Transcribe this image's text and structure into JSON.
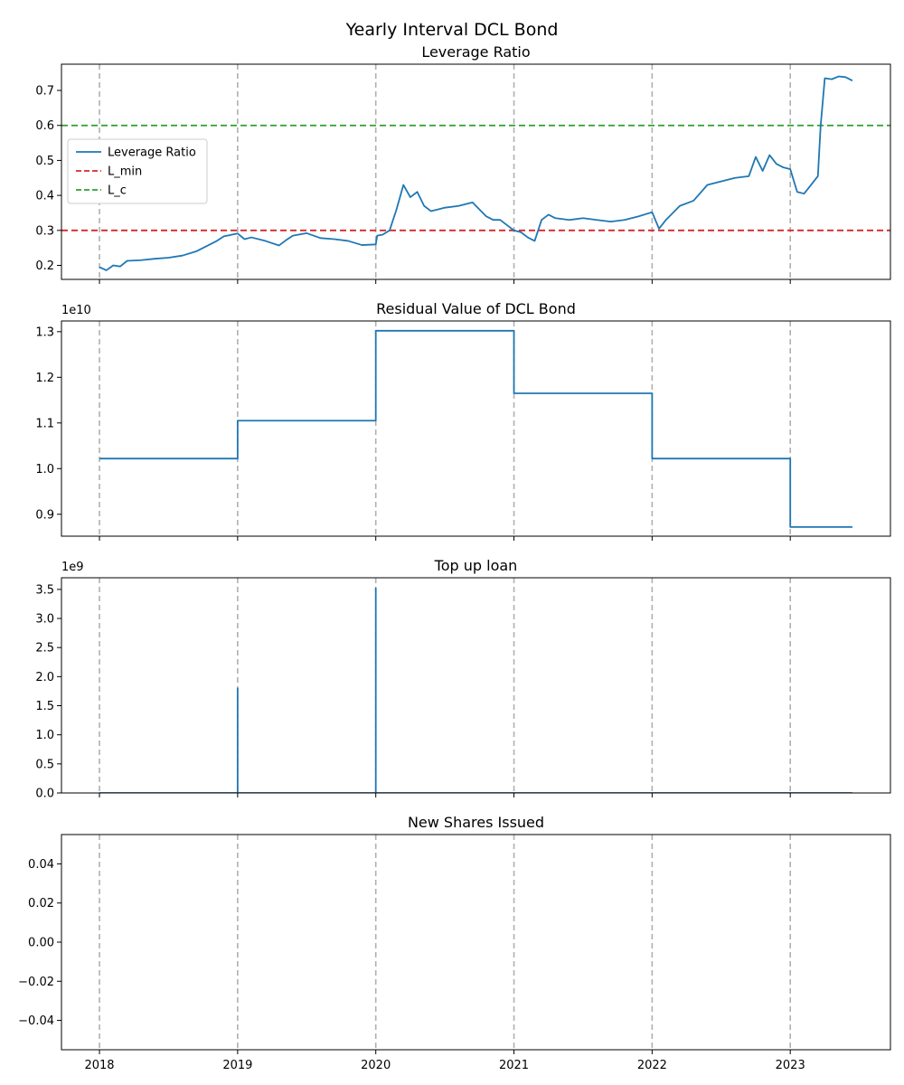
{
  "suptitle": "Yearly Interval DCL Bond",
  "x_tick_labels": [
    "2018",
    "2019",
    "2020",
    "2021",
    "2022",
    "2023"
  ],
  "chart_data": [
    {
      "type": "line",
      "title": "Leverage Ratio",
      "xlabel": "",
      "ylabel": "",
      "ylim": [
        0.16,
        0.775
      ],
      "y_ticks": [
        0.2,
        0.3,
        0.4,
        0.5,
        0.6,
        0.7
      ],
      "y_tick_labels": [
        "0.2",
        "0.3",
        "0.4",
        "0.5",
        "0.6",
        "0.7"
      ],
      "vertical_lines": [
        2018,
        2019,
        2020,
        2021,
        2022,
        2023
      ],
      "hlines": [
        {
          "name": "L_min",
          "y": 0.3,
          "color": "#d62728"
        },
        {
          "name": "L_c",
          "y": 0.6,
          "color": "#2ca02c"
        }
      ],
      "legend": {
        "position": "center-left",
        "entries": [
          {
            "label": "Leverage Ratio",
            "color": "#1f77b4",
            "style": "solid"
          },
          {
            "label": "L_min",
            "color": "#d62728",
            "style": "dashed"
          },
          {
            "label": "L_c",
            "color": "#2ca02c",
            "style": "dashed"
          }
        ]
      },
      "series": [
        {
          "name": "Leverage Ratio",
          "color": "#1f77b4",
          "x": [
            2018.0,
            2018.05,
            2018.1,
            2018.15,
            2018.2,
            2018.3,
            2018.4,
            2018.5,
            2018.6,
            2018.7,
            2018.8,
            2018.85,
            2018.9,
            2019.0,
            2019.05,
            2019.1,
            2019.2,
            2019.3,
            2019.35,
            2019.4,
            2019.5,
            2019.6,
            2019.7,
            2019.8,
            2019.9,
            2020.0,
            2020.01,
            2020.05,
            2020.1,
            2020.15,
            2020.2,
            2020.25,
            2020.3,
            2020.35,
            2020.4,
            2020.45,
            2020.5,
            2020.6,
            2020.7,
            2020.8,
            2020.85,
            2020.9,
            2021.0,
            2021.05,
            2021.1,
            2021.15,
            2021.2,
            2021.25,
            2021.3,
            2021.4,
            2021.5,
            2021.6,
            2021.7,
            2021.8,
            2021.9,
            2022.0,
            2022.05,
            2022.1,
            2022.15,
            2022.2,
            2022.3,
            2022.4,
            2022.5,
            2022.6,
            2022.7,
            2022.75,
            2022.8,
            2022.85,
            2022.9,
            2022.95,
            2023.0,
            2023.05,
            2023.1,
            2023.15,
            2023.2,
            2023.22,
            2023.25,
            2023.3,
            2023.35,
            2023.4,
            2023.45
          ],
          "y": [
            0.195,
            0.186,
            0.2,
            0.197,
            0.213,
            0.215,
            0.219,
            0.222,
            0.228,
            0.24,
            0.26,
            0.27,
            0.283,
            0.291,
            0.275,
            0.28,
            0.27,
            0.257,
            0.272,
            0.285,
            0.292,
            0.278,
            0.275,
            0.27,
            0.258,
            0.26,
            0.285,
            0.288,
            0.3,
            0.36,
            0.43,
            0.395,
            0.41,
            0.37,
            0.355,
            0.36,
            0.365,
            0.37,
            0.38,
            0.34,
            0.33,
            0.33,
            0.3,
            0.295,
            0.28,
            0.27,
            0.33,
            0.345,
            0.335,
            0.33,
            0.335,
            0.33,
            0.325,
            0.33,
            0.34,
            0.352,
            0.305,
            0.33,
            0.35,
            0.37,
            0.385,
            0.43,
            0.44,
            0.45,
            0.455,
            0.51,
            0.47,
            0.515,
            0.49,
            0.48,
            0.475,
            0.41,
            0.405,
            0.43,
            0.455,
            0.6,
            0.735,
            0.732,
            0.74,
            0.738,
            0.728
          ]
        }
      ]
    },
    {
      "type": "line",
      "title": "Residual Value of DCL Bond",
      "xlabel": "",
      "ylabel": "",
      "y_offset_label": "1e10",
      "ylim": [
        0.852,
        1.3234
      ],
      "y_ticks": [
        0.9,
        1.0,
        1.1,
        1.2,
        1.3
      ],
      "y_tick_labels": [
        "0.9",
        "1.0",
        "1.1",
        "1.2",
        "1.3"
      ],
      "vertical_lines": [
        2018,
        2019,
        2020,
        2021,
        2022,
        2023
      ],
      "series": [
        {
          "name": "Residual Value of DCL Bond",
          "color": "#1f77b4",
          "x": [
            2018.0,
            2019.0,
            2019.0,
            2020.0,
            2020.0,
            2021.0,
            2021.0,
            2022.0,
            2022.0,
            2023.0,
            2023.0,
            2023.45
          ],
          "y": [
            1.022,
            1.022,
            1.105,
            1.105,
            1.302,
            1.302,
            1.165,
            1.165,
            1.022,
            1.022,
            0.872,
            0.872
          ]
        }
      ]
    },
    {
      "type": "line",
      "title": "Top up loan",
      "xlabel": "",
      "ylabel": "",
      "y_offset_label": "1e9",
      "ylim": [
        0,
        3.7
      ],
      "y_ticks": [
        0.0,
        0.5,
        1.0,
        1.5,
        2.0,
        2.5,
        3.0,
        3.5
      ],
      "y_tick_labels": [
        "0.0",
        "0.5",
        "1.0",
        "1.5",
        "2.0",
        "2.5",
        "3.0",
        "3.5"
      ],
      "vertical_lines": [
        2018,
        2019,
        2020,
        2021,
        2022,
        2023
      ],
      "series": [
        {
          "name": "Top up loan",
          "color": "#1f77b4",
          "x": [
            2018.0,
            2019.0,
            2019.0,
            2019.0,
            2020.0,
            2020.0,
            2020.0,
            2023.45
          ],
          "y": [
            0,
            0,
            1.8,
            0,
            0,
            3.52,
            0,
            0
          ]
        }
      ]
    },
    {
      "type": "line",
      "title": "New Shares Issued",
      "xlabel": "",
      "ylabel": "",
      "ylim": [
        -0.055,
        0.055
      ],
      "y_ticks": [
        -0.04,
        -0.02,
        0.0,
        0.02,
        0.04
      ],
      "y_tick_labels": [
        "−0.04",
        "−0.02",
        "0.00",
        "0.02",
        "0.04"
      ],
      "vertical_lines": [
        2018,
        2019,
        2020,
        2021,
        2022,
        2023
      ],
      "series": []
    }
  ]
}
